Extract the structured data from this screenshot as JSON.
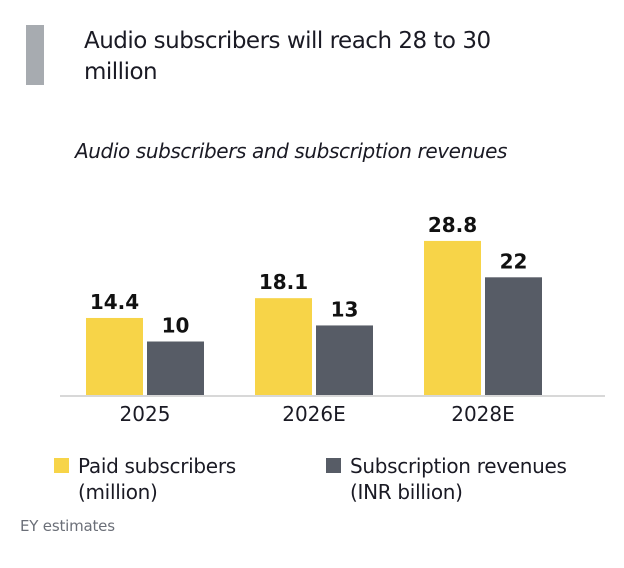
{
  "title": "Audio subscribers will reach 28 to 30 million",
  "colors": {
    "accent": "#a7abb0",
    "paid": "#f7d448",
    "revenue": "#575c66",
    "axis": "#d8d8d8",
    "text": "#1a1a24"
  },
  "chart_data": {
    "type": "bar",
    "title": "Audio subscribers and subscription revenues",
    "xlabel": "",
    "ylabel": "",
    "categories": [
      "2025",
      "2026E",
      "2028E"
    ],
    "series": [
      {
        "name": "Paid subscribers (million)",
        "line1": "Paid subscribers",
        "line2": "(million)",
        "values": [
          14.4,
          18.1,
          28.8
        ],
        "labels": [
          "14.4",
          "18.1",
          "28.8"
        ]
      },
      {
        "name": "Subscription revenues (INR billion)",
        "line1": "Subscription revenues",
        "line2": "(INR billion)",
        "values": [
          10,
          13,
          22
        ],
        "labels": [
          "10",
          "13",
          "22"
        ]
      }
    ],
    "ylim": [
      0,
      36
    ],
    "grid": false,
    "legend": "bottom"
  },
  "source": "EY estimates"
}
